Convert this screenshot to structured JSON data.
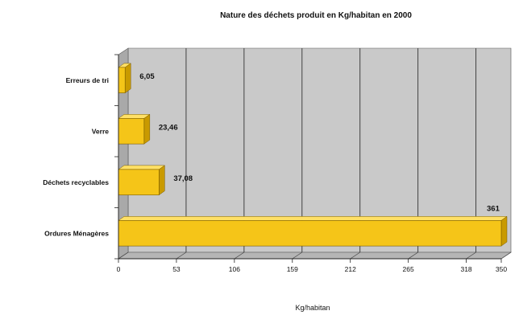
{
  "chart_data": {
    "type": "bar",
    "orientation": "horizontal",
    "title": "Nature des déchets produit en Kg/habitan en 2000",
    "xlabel": "Kg/habitan",
    "ylabel": "",
    "categories": [
      "Erreurs de tri",
      "Verre",
      "Déchets recyclables",
      "Ordures Ménagères"
    ],
    "values": [
      6.05,
      23.46,
      37.08,
      361
    ],
    "value_labels": [
      "6,05",
      "23,46",
      "37,08",
      "361"
    ],
    "xlim": [
      0,
      350
    ],
    "xticks": [
      0,
      53,
      106,
      159,
      212,
      265,
      318,
      350
    ],
    "tick_labels": [
      "0",
      "53",
      "106",
      "159",
      "212",
      "265",
      "318",
      "350"
    ],
    "grid": true,
    "style": "3d",
    "colors": {
      "bar": "#f5c518",
      "bar_side": "#c99a00",
      "bar_top": "#ffe066",
      "wall": "#c9c9c9",
      "floor": "#b5b5b5",
      "grid": "#333333"
    }
  }
}
